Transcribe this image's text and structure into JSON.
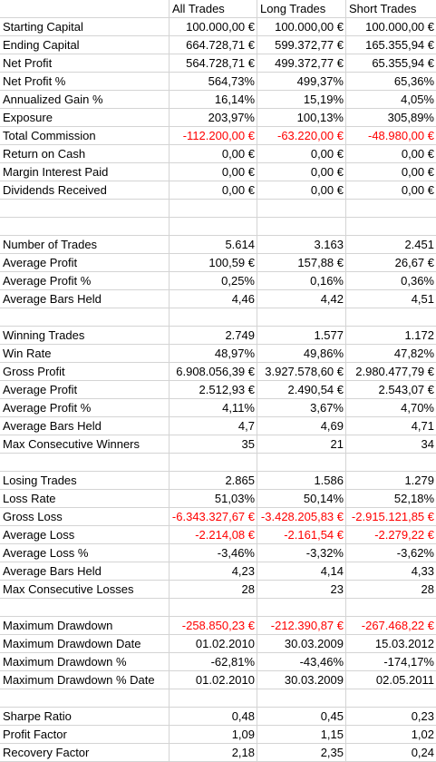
{
  "colors": {
    "negative": "#ff0000",
    "gridline": "#d4d4d4"
  },
  "header": {
    "col1": "All Trades",
    "col2": "Long Trades",
    "col3": "Short Trades"
  },
  "rows": [
    {
      "label": "Starting Capital",
      "all": "100.000,00 €",
      "long": "100.000,00 €",
      "short": "100.000,00 €"
    },
    {
      "label": "Ending Capital",
      "all": "664.728,71 €",
      "long": "599.372,77 €",
      "short": "165.355,94 €"
    },
    {
      "label": "Net Profit",
      "all": "564.728,71 €",
      "long": "499.372,77 €",
      "short": "65.355,94 €"
    },
    {
      "label": "Net Profit %",
      "all": "564,73%",
      "long": "499,37%",
      "short": "65,36%"
    },
    {
      "label": "Annualized Gain %",
      "all": "16,14%",
      "long": "15,19%",
      "short": "4,05%"
    },
    {
      "label": "Exposure",
      "all": "203,97%",
      "long": "100,13%",
      "short": "305,89%"
    },
    {
      "label": "Total Commission",
      "all": "-112.200,00 €",
      "long": "-63.220,00 €",
      "short": "-48.980,00 €",
      "negative": true
    },
    {
      "label": "Return on Cash",
      "all": "0,00 €",
      "long": "0,00 €",
      "short": "0,00 €"
    },
    {
      "label": "Margin Interest Paid",
      "all": "0,00 €",
      "long": "0,00 €",
      "short": "0,00 €"
    },
    {
      "label": "Dividends Received",
      "all": "0,00 €",
      "long": "0,00 €",
      "short": "0,00 €"
    },
    {
      "label": "",
      "all": "",
      "long": "",
      "short": ""
    },
    {
      "label": "",
      "all": "",
      "long": "",
      "short": ""
    },
    {
      "label": "Number of Trades",
      "all": "5.614",
      "long": "3.163",
      "short": "2.451"
    },
    {
      "label": "Average Profit",
      "all": "100,59 €",
      "long": "157,88 €",
      "short": "26,67 €"
    },
    {
      "label": "Average Profit %",
      "all": "0,25%",
      "long": "0,16%",
      "short": "0,36%"
    },
    {
      "label": "Average Bars Held",
      "all": "4,46",
      "long": "4,42",
      "short": "4,51"
    },
    {
      "label": "",
      "all": "",
      "long": "",
      "short": ""
    },
    {
      "label": "Winning Trades",
      "all": "2.749",
      "long": "1.577",
      "short": "1.172"
    },
    {
      "label": "Win Rate",
      "all": "48,97%",
      "long": "49,86%",
      "short": "47,82%"
    },
    {
      "label": "Gross Profit",
      "all": "6.908.056,39 €",
      "long": "3.927.578,60 €",
      "short": "2.980.477,79 €"
    },
    {
      "label": "Average Profit",
      "all": "2.512,93 €",
      "long": "2.490,54 €",
      "short": "2.543,07 €"
    },
    {
      "label": "Average Profit %",
      "all": "4,11%",
      "long": "3,67%",
      "short": "4,70%"
    },
    {
      "label": "Average Bars Held",
      "all": "4,7",
      "long": "4,69",
      "short": "4,71"
    },
    {
      "label": "Max Consecutive Winners",
      "all": "35",
      "long": "21",
      "short": "34"
    },
    {
      "label": "",
      "all": "",
      "long": "",
      "short": ""
    },
    {
      "label": "Losing Trades",
      "all": "2.865",
      "long": "1.586",
      "short": "1.279"
    },
    {
      "label": "Loss Rate",
      "all": "51,03%",
      "long": "50,14%",
      "short": "52,18%"
    },
    {
      "label": "Gross Loss",
      "all": "-6.343.327,67 €",
      "long": "-3.428.205,83 €",
      "short": "-2.915.121,85 €",
      "negative": true
    },
    {
      "label": "Average Loss",
      "all": "-2.214,08 €",
      "long": "-2.161,54 €",
      "short": "-2.279,22 €",
      "negative": true
    },
    {
      "label": "Average Loss %",
      "all": "-3,46%",
      "long": "-3,32%",
      "short": "-3,62%"
    },
    {
      "label": "Average Bars Held",
      "all": "4,23",
      "long": "4,14",
      "short": "4,33"
    },
    {
      "label": "Max Consecutive Losses",
      "all": "28",
      "long": "23",
      "short": "28"
    },
    {
      "label": "",
      "all": "",
      "long": "",
      "short": ""
    },
    {
      "label": "Maximum Drawdown",
      "all": "-258.850,23 €",
      "long": "-212.390,87 €",
      "short": "-267.468,22 €",
      "negative": true
    },
    {
      "label": "Maximum Drawdown Date",
      "all": "01.02.2010",
      "long": "30.03.2009",
      "short": "15.03.2012"
    },
    {
      "label": "Maximum Drawdown %",
      "all": "-62,81%",
      "long": "-43,46%",
      "short": "-174,17%"
    },
    {
      "label": "Maximum Drawdown % Date",
      "all": "01.02.2010",
      "long": "30.03.2009",
      "short": "02.05.2011"
    },
    {
      "label": "",
      "all": "",
      "long": "",
      "short": ""
    },
    {
      "label": "Sharpe Ratio",
      "all": "0,48",
      "long": "0,45",
      "short": "0,23"
    },
    {
      "label": "Profit Factor",
      "all": "1,09",
      "long": "1,15",
      "short": "1,02"
    },
    {
      "label": "Recovery Factor",
      "all": "2,18",
      "long": "2,35",
      "short": "0,24"
    }
  ]
}
